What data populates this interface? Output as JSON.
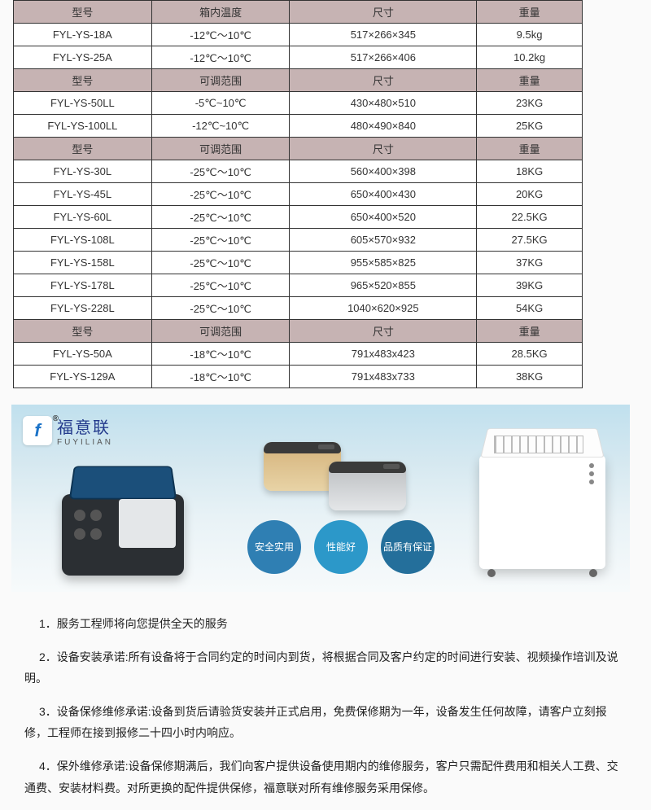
{
  "table": {
    "headers": [
      {
        "c1": "型号",
        "c2": "箱内温度",
        "c3": "尺寸",
        "c4": "重量"
      },
      {
        "c1": "型号",
        "c2": "可调范围",
        "c3": "尺寸",
        "c4": "重量"
      },
      {
        "c1": "型号",
        "c2": "可调范围",
        "c3": "尺寸",
        "c4": "重量"
      },
      {
        "c1": "型号",
        "c2": "可调范围",
        "c3": "尺寸",
        "c4": "重量"
      }
    ],
    "s1": [
      {
        "c1": "FYL-YS-18A",
        "c2": "-12℃～10℃",
        "c3": "517×266×345",
        "c4": "9.5kg"
      },
      {
        "c1": "FYL-YS-25A",
        "c2": "-12℃～10℃",
        "c3": "517×266×406",
        "c4": "10.2kg"
      }
    ],
    "s2": [
      {
        "c1": "FYL-YS-50LL",
        "c2": "-5℃~10℃",
        "c3": "430×480×510",
        "c4": "23KG"
      },
      {
        "c1": "FYL-YS-100LL",
        "c2": "-12℃~10℃",
        "c3": "480×490×840",
        "c4": "25KG"
      }
    ],
    "s3": [
      {
        "c1": "FYL-YS-30L",
        "c2": "-25℃～10℃",
        "c3": "560×400×398",
        "c4": "18KG"
      },
      {
        "c1": "FYL-YS-45L",
        "c2": "-25℃～10℃",
        "c3": "650×400×430",
        "c4": "20KG"
      },
      {
        "c1": "FYL-YS-60L",
        "c2": "-25℃～10℃",
        "c3": "650×400×520",
        "c4": "22.5KG"
      },
      {
        "c1": "FYL-YS-108L",
        "c2": "-25℃～10℃",
        "c3": "605×570×932",
        "c4": "27.5KG"
      },
      {
        "c1": "FYL-YS-158L",
        "c2": "-25℃～10℃",
        "c3": "955×585×825",
        "c4": "37KG"
      },
      {
        "c1": "FYL-YS-178L",
        "c2": "-25℃～10℃",
        "c3": "965×520×855",
        "c4": "39KG"
      },
      {
        "c1": "FYL-YS-228L",
        "c2": "-25℃～10℃",
        "c3": "1040×620×925",
        "c4": "54KG"
      }
    ],
    "s4": [
      {
        "c1": "FYL-YS-50A",
        "c2": "-18℃～10℃",
        "c3": "791x483x423",
        "c4": "28.5KG"
      },
      {
        "c1": "FYL-YS-129A",
        "c2": "-18℃～10℃",
        "c3": "791x483x733",
        "c4": "38KG"
      }
    ],
    "header_bg": "#c6b3b3",
    "row_bg": "#ffffff",
    "border_color": "#333333"
  },
  "banner": {
    "brand_cn": "福意联",
    "brand_en": "FUYILIAN",
    "logo_letter": "f",
    "badges": [
      {
        "label": "安全实用",
        "color": "#2f7fb3"
      },
      {
        "label": "性能好",
        "color": "#2c98c9"
      },
      {
        "label": "品质有保证",
        "color": "#246f9b"
      }
    ],
    "bg_gradient": [
      "#c0e0ee",
      "#f7fafb"
    ]
  },
  "notes": {
    "p1": "1．服务工程师将向您提供全天的服务",
    "p2": "2．设备安装承诺:所有设备将于合同约定的时间内到货，将根据合同及客户约定的时间进行安装、视频操作培训及说明。",
    "p3": "3．设备保修维修承诺:设备到货后请验货安装并正式启用，免费保修期为一年，设备发生任何故障，请客户立刻报修，工程师在接到报修二十四小时内响应。",
    "p4": "4．保外维修承诺:设备保修期满后，我们向客户提供设备使用期内的维修服务，客户只需配件费用和相关人工费、交通费、安装材料费。对所更换的配件提供保修，福意联对所有维修服务采用保修。"
  }
}
